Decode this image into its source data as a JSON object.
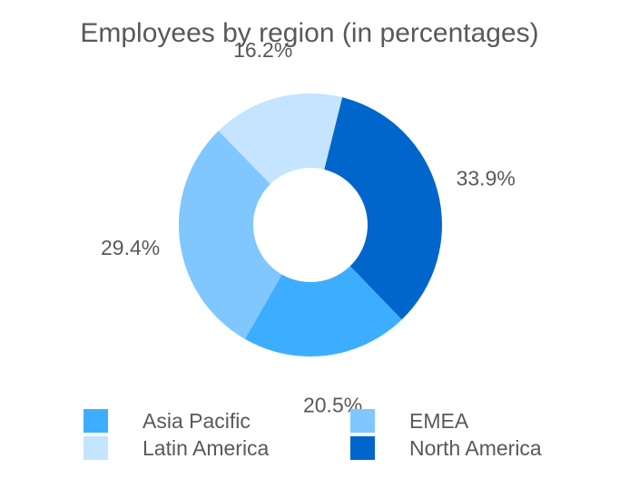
{
  "chart_data": {
    "type": "pie",
    "donut": true,
    "title": "Employees by region (in percentages)",
    "slices": [
      {
        "name": "North America",
        "value": 33.9,
        "label": "33.9%",
        "color": "#0066CC"
      },
      {
        "name": "Asia Pacific",
        "value": 20.5,
        "label": "20.5%",
        "color": "#3DAEFF"
      },
      {
        "name": "EMEA",
        "value": 29.4,
        "label": "29.4%",
        "color": "#80C7FF"
      },
      {
        "name": "Latin America",
        "value": 16.2,
        "label": "16.2%",
        "color": "#C4E4FF"
      }
    ],
    "legend": {
      "placement": "bottom",
      "items": [
        {
          "name": "Asia Pacific",
          "color": "#3DAEFF"
        },
        {
          "name": "EMEA",
          "color": "#80C7FF"
        },
        {
          "name": "Latin America",
          "color": "#C4E4FF"
        },
        {
          "name": "North America",
          "color": "#0066CC"
        }
      ]
    }
  }
}
